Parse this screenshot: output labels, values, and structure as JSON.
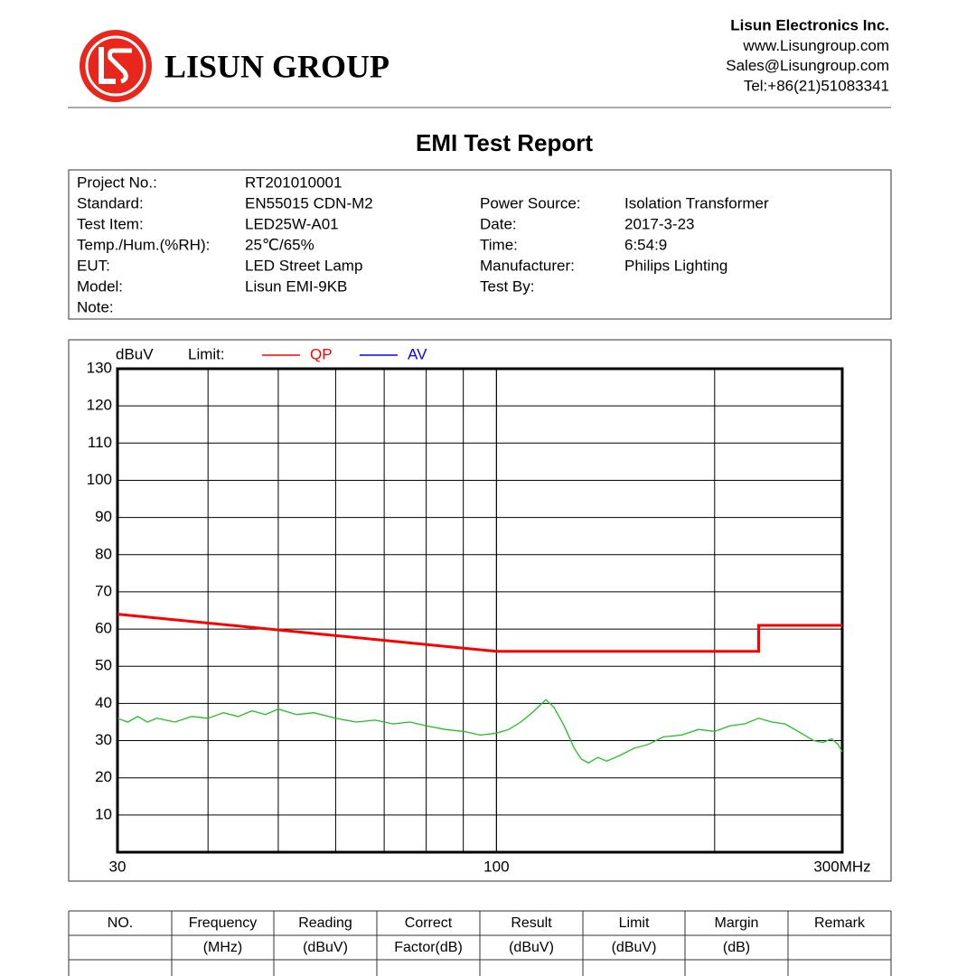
{
  "header": {
    "company": "LISUN GROUP",
    "contact": [
      "Lisun Electronics Inc.",
      "www.Lisungroup.com",
      "Sales@Lisungroup.com",
      "Tel:+86(21)51083341"
    ]
  },
  "title": "EMI Test Report",
  "info": {
    "left": [
      [
        "Project No.:",
        "RT201010001"
      ],
      [
        "Standard:",
        "EN55015 CDN-M2"
      ],
      [
        "Test Item:",
        "LED25W-A01"
      ],
      [
        "Temp./Hum.(%RH):",
        "25℃/65%"
      ],
      [
        "EUT:",
        "LED Street Lamp"
      ],
      [
        "Model:",
        "Lisun EMI-9KB"
      ],
      [
        "Note:",
        null
      ]
    ],
    "right": [
      [
        "Power Source:",
        "Isolation Transformer"
      ],
      [
        "Date:",
        "2017-3-23"
      ],
      [
        "Time:",
        "6:54:9"
      ],
      [
        "Manufacturer:",
        "Philips Lighting"
      ],
      [
        "Test By:",
        null
      ]
    ]
  },
  "chart_data": {
    "type": "line",
    "y_label": "dBuV",
    "legend_title": "Limit:",
    "xscale": "log",
    "xlim": [
      30,
      300
    ],
    "xticks": [
      30,
      100,
      {
        "value": 300,
        "label": "300MHz"
      }
    ],
    "ylim": [
      0,
      130
    ],
    "yticks": [
      10,
      20,
      30,
      40,
      50,
      60,
      70,
      80,
      90,
      100,
      110,
      120,
      130
    ],
    "grid": true,
    "series": [
      {
        "name": "QP",
        "color": "#ff0000",
        "x": [
          30,
          100,
          230,
          230,
          300
        ],
        "values": [
          64,
          54,
          54,
          61,
          61
        ]
      },
      {
        "name": "AV",
        "color": "#0000ff",
        "x": [],
        "values": []
      },
      {
        "color": "#22c022",
        "x": [
          30,
          31,
          32,
          33,
          34,
          35,
          36,
          38,
          40,
          42,
          44,
          46,
          48,
          50,
          53,
          56,
          60,
          64,
          68,
          72,
          76,
          80,
          85,
          90,
          95,
          100,
          104,
          108,
          112,
          117,
          120,
          124,
          128,
          131,
          134,
          138,
          142,
          148,
          155,
          162,
          170,
          180,
          190,
          200,
          210,
          220,
          230,
          240,
          250,
          258,
          266,
          274,
          282,
          290,
          296,
          300
        ],
        "values": [
          36,
          35,
          36.5,
          35,
          36,
          35.5,
          35,
          36.5,
          36,
          37.5,
          36.5,
          38,
          37,
          38.5,
          37,
          37.5,
          36,
          35,
          35.5,
          34.5,
          35,
          34,
          33,
          32.5,
          31.5,
          32,
          33,
          35,
          37.5,
          41,
          39,
          34,
          28,
          25,
          24,
          25.5,
          24.5,
          26,
          28,
          29,
          31,
          31.5,
          33,
          32.5,
          34,
          34.5,
          36,
          35,
          34.5,
          33,
          31.5,
          30,
          29.5,
          30.5,
          29,
          27
        ]
      }
    ]
  },
  "table": {
    "header": [
      [
        "NO.",
        "Frequency",
        "Reading",
        "Correct",
        "Result",
        "Limit",
        "Margin",
        "Remark"
      ],
      [
        null,
        "(MHz)",
        "(dBuV)",
        "Factor(dB)",
        "(dBuV)",
        "(dBuV)",
        "(dB)",
        null
      ]
    ]
  }
}
